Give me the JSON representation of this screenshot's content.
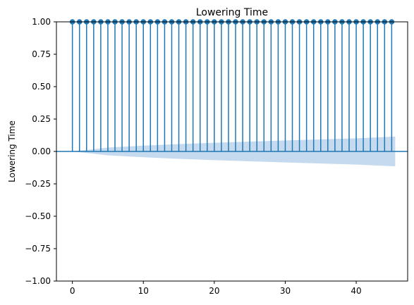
{
  "chart_data": {
    "type": "stem",
    "title": "Lowering Time",
    "xlabel": "",
    "ylabel": "Lowering Time",
    "xlim": [
      -2.25,
      47.25
    ],
    "ylim": [
      -1.0,
      1.0
    ],
    "xticks": [
      0,
      10,
      20,
      30,
      40
    ],
    "xtick_labels": [
      "0",
      "10",
      "20",
      "30",
      "40"
    ],
    "yticks": [
      -1.0,
      -0.75,
      -0.5,
      -0.25,
      0.0,
      0.25,
      0.5,
      0.75,
      1.0
    ],
    "ytick_labels": [
      "−1.00",
      "−0.75",
      "−0.50",
      "−0.25",
      "0.00",
      "0.25",
      "0.50",
      "0.75",
      "1.00"
    ],
    "lags": [
      0,
      1,
      2,
      3,
      4,
      5,
      6,
      7,
      8,
      9,
      10,
      11,
      12,
      13,
      14,
      15,
      16,
      17,
      18,
      19,
      20,
      21,
      22,
      23,
      24,
      25,
      26,
      27,
      28,
      29,
      30,
      31,
      32,
      33,
      34,
      35,
      36,
      37,
      38,
      39,
      40,
      41,
      42,
      43,
      44,
      45
    ],
    "values": [
      1.0,
      1.0,
      1.0,
      1.0,
      1.0,
      1.0,
      1.0,
      1.0,
      1.0,
      1.0,
      1.0,
      1.0,
      1.0,
      1.0,
      1.0,
      1.0,
      1.0,
      1.0,
      1.0,
      1.0,
      1.0,
      1.0,
      1.0,
      1.0,
      1.0,
      1.0,
      1.0,
      1.0,
      1.0,
      1.0,
      1.0,
      1.0,
      1.0,
      1.0,
      1.0,
      1.0,
      1.0,
      1.0,
      1.0,
      1.0,
      1.0,
      1.0,
      1.0,
      1.0,
      1.0,
      1.0
    ],
    "confidence_band": {
      "x": [
        0,
        5,
        10,
        15,
        20,
        25,
        30,
        35,
        40,
        45.5
      ],
      "upper": [
        0.0,
        0.03,
        0.045,
        0.057,
        0.067,
        0.076,
        0.085,
        0.093,
        0.101,
        0.115
      ],
      "lower": [
        0.0,
        -0.03,
        -0.045,
        -0.057,
        -0.067,
        -0.076,
        -0.085,
        -0.093,
        -0.101,
        -0.115
      ]
    },
    "grid": false,
    "colors": {
      "stem": "#1f77b4",
      "band": "#aecbe8",
      "zero_line": "#1f77b4"
    }
  }
}
